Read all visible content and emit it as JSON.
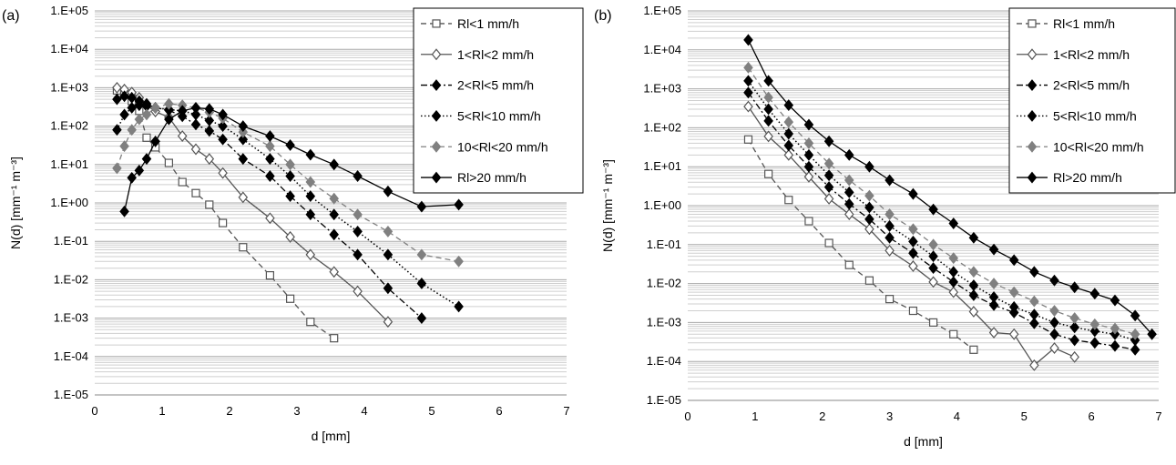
{
  "chart_data": [
    {
      "panel_label": "(a)",
      "type": "line",
      "xlabel": "d [mm]",
      "ylabel": "N(d) [mm⁻¹ m⁻³]",
      "xlim": [
        0,
        7
      ],
      "ylim": [
        1e-05,
        100000
      ],
      "y_scale": "log",
      "grid": true,
      "legend_position": "top-right",
      "x_ticks": [
        "0",
        "1",
        "2",
        "3",
        "4",
        "5",
        "6",
        "7"
      ],
      "y_ticks": [
        "1.E-05",
        "1.E-04",
        "1.E-03",
        "1.E-02",
        "1.E-01",
        "1.E+00",
        "1.E+01",
        "1.E+02",
        "1.E+03",
        "1.E+04",
        "1.E+05"
      ],
      "series": [
        {
          "name": "Rl<1 mm/h",
          "marker": "square-open",
          "dash": "dashed",
          "color": "#555555",
          "x": [
            0.33,
            0.44,
            0.55,
            0.66,
            0.77,
            0.9,
            1.1,
            1.3,
            1.5,
            1.7,
            1.9,
            2.2,
            2.6,
            2.9,
            3.2,
            3.55
          ],
          "y": [
            850,
            650,
            450,
            250,
            50,
            28,
            11,
            3.5,
            1.8,
            0.9,
            0.3,
            0.07,
            0.013,
            0.0032,
            0.0008,
            0.0003
          ]
        },
        {
          "name": "1<Rl<2 mm/h",
          "marker": "diamond-open",
          "dash": "solid",
          "color": "#555555",
          "x": [
            0.33,
            0.44,
            0.55,
            0.66,
            0.77,
            0.9,
            1.1,
            1.3,
            1.5,
            1.7,
            1.9,
            2.2,
            2.6,
            2.9,
            3.2,
            3.55,
            3.9,
            4.35
          ],
          "y": [
            1000,
            900,
            750,
            550,
            350,
            240,
            170,
            55,
            25,
            14,
            6,
            1.4,
            0.4,
            0.13,
            0.045,
            0.016,
            0.005,
            0.0008
          ]
        },
        {
          "name": "2<Rl<5 mm/h",
          "marker": "diamond",
          "dash": "dashdot",
          "color": "#000000",
          "x": [
            0.33,
            0.44,
            0.55,
            0.66,
            0.77,
            0.9,
            1.1,
            1.3,
            1.5,
            1.7,
            1.9,
            2.2,
            2.6,
            2.9,
            3.2,
            3.55,
            3.9,
            4.35,
            4.85
          ],
          "y": [
            500,
            600,
            550,
            450,
            380,
            300,
            260,
            180,
            110,
            75,
            45,
            14,
            5,
            1.5,
            0.5,
            0.15,
            0.045,
            0.006,
            0.001
          ]
        },
        {
          "name": "5<Rl<10 mm/h",
          "marker": "diamond",
          "dash": "dotted",
          "color": "#000000",
          "x": [
            0.33,
            0.44,
            0.55,
            0.66,
            0.77,
            0.9,
            1.1,
            1.3,
            1.5,
            1.7,
            1.9,
            2.2,
            2.6,
            2.9,
            3.2,
            3.55,
            3.9,
            4.35,
            4.85,
            5.4
          ],
          "y": [
            80,
            200,
            300,
            350,
            330,
            300,
            270,
            250,
            200,
            140,
            100,
            45,
            14,
            5,
            1.5,
            0.5,
            0.18,
            0.045,
            0.008,
            0.002
          ]
        },
        {
          "name": "10<Rl<20 mm/h",
          "marker": "diamond",
          "dash": "dashed",
          "color": "#808080",
          "x": [
            0.33,
            0.44,
            0.55,
            0.66,
            0.77,
            0.9,
            1.1,
            1.3,
            1.5,
            1.7,
            1.9,
            2.2,
            2.6,
            2.9,
            3.2,
            3.55,
            3.9,
            4.35,
            4.85,
            5.4
          ],
          "y": [
            8,
            30,
            80,
            150,
            200,
            300,
            380,
            350,
            300,
            230,
            160,
            70,
            30,
            10,
            3.5,
            1.3,
            0.5,
            0.18,
            0.045,
            0.03
          ]
        },
        {
          "name": "Rl>20 mm/h",
          "marker": "diamond",
          "dash": "solid",
          "color": "#000000",
          "x": [
            0.44,
            0.55,
            0.66,
            0.77,
            0.9,
            1.1,
            1.3,
            1.5,
            1.7,
            1.9,
            2.2,
            2.6,
            2.9,
            3.2,
            3.55,
            3.9,
            4.35,
            4.85,
            5.4
          ],
          "y": [
            0.6,
            4.5,
            7,
            14,
            40,
            150,
            250,
            300,
            280,
            200,
            100,
            55,
            32,
            18,
            10,
            5,
            2,
            0.8,
            0.9
          ]
        }
      ]
    },
    {
      "panel_label": "(b)",
      "type": "line",
      "xlabel": "d [mm]",
      "ylabel": "N(d) [mm⁻¹ m⁻³]",
      "xlim": [
        0,
        7
      ],
      "ylim": [
        1e-05,
        100000
      ],
      "y_scale": "log",
      "grid": true,
      "legend_position": "top-right",
      "x_ticks": [
        "0",
        "1",
        "2",
        "3",
        "4",
        "5",
        "6",
        "7"
      ],
      "y_ticks": [
        "1.E-05",
        "1.E-04",
        "1.E-03",
        "1.E-02",
        "1.E-01",
        "1.E+00",
        "1.E+01",
        "1.E+02",
        "1.E+03",
        "1.E+04",
        "1.E+05"
      ],
      "series": [
        {
          "name": "Rl<1 mm/h",
          "marker": "square-open",
          "dash": "dashed",
          "color": "#555555",
          "x": [
            0.9,
            1.2,
            1.5,
            1.8,
            2.1,
            2.4,
            2.7,
            3.0,
            3.35,
            3.65,
            3.95,
            4.25
          ],
          "y": [
            50,
            6.5,
            1.4,
            0.4,
            0.11,
            0.03,
            0.012,
            0.004,
            0.002,
            0.001,
            0.0005,
            0.0002
          ]
        },
        {
          "name": "1<Rl<2 mm/h",
          "marker": "diamond-open",
          "dash": "solid",
          "color": "#555555",
          "x": [
            0.9,
            1.2,
            1.5,
            1.8,
            2.1,
            2.4,
            2.7,
            3.0,
            3.35,
            3.65,
            3.95,
            4.25,
            4.55,
            4.85,
            5.15,
            5.45,
            5.75
          ],
          "y": [
            350,
            60,
            20,
            5.5,
            1.5,
            0.6,
            0.25,
            0.07,
            0.028,
            0.011,
            0.006,
            0.0019,
            0.00055,
            0.0005,
            8e-05,
            0.00022,
            0.00013
          ]
        },
        {
          "name": "2<Rl<5 mm/h",
          "marker": "diamond",
          "dash": "dashdot",
          "color": "#000000",
          "x": [
            0.9,
            1.2,
            1.5,
            1.8,
            2.1,
            2.4,
            2.7,
            3.0,
            3.35,
            3.65,
            3.95,
            4.25,
            4.55,
            4.85,
            5.15,
            5.45,
            5.75,
            6.05,
            6.35,
            6.65
          ],
          "y": [
            800,
            150,
            35,
            10,
            3,
            1.1,
            0.45,
            0.15,
            0.06,
            0.025,
            0.011,
            0.005,
            0.0028,
            0.0018,
            0.00095,
            0.0005,
            0.00035,
            0.0003,
            0.00025,
            0.0002
          ]
        },
        {
          "name": "5<Rl<10 mm/h",
          "marker": "diamond",
          "dash": "dotted",
          "color": "#000000",
          "x": [
            0.9,
            1.2,
            1.5,
            1.8,
            2.1,
            2.4,
            2.7,
            3.0,
            3.35,
            3.65,
            3.95,
            4.25,
            4.55,
            4.85,
            5.15,
            5.45,
            5.75,
            6.05,
            6.35,
            6.65
          ],
          "y": [
            1600,
            300,
            70,
            20,
            6,
            2.2,
            0.9,
            0.3,
            0.12,
            0.05,
            0.02,
            0.009,
            0.0045,
            0.0025,
            0.0016,
            0.001,
            0.00075,
            0.0006,
            0.0005,
            0.00035
          ]
        },
        {
          "name": "10<Rl<20 mm/h",
          "marker": "diamond",
          "dash": "dashed",
          "color": "#808080",
          "x": [
            0.9,
            1.2,
            1.5,
            1.8,
            2.1,
            2.4,
            2.7,
            3.0,
            3.35,
            3.65,
            3.95,
            4.25,
            4.55,
            4.85,
            5.15,
            5.45,
            5.75,
            6.05,
            6.35,
            6.65
          ],
          "y": [
            3500,
            600,
            140,
            40,
            12,
            4.5,
            1.8,
            0.6,
            0.25,
            0.1,
            0.045,
            0.02,
            0.01,
            0.006,
            0.0035,
            0.002,
            0.0013,
            0.0009,
            0.0007,
            0.0005
          ]
        },
        {
          "name": "Rl>20 mm/h",
          "marker": "diamond",
          "dash": "solid",
          "color": "#000000",
          "x": [
            0.9,
            1.2,
            1.5,
            1.8,
            2.1,
            2.4,
            2.7,
            3.0,
            3.35,
            3.65,
            3.95,
            4.25,
            4.55,
            4.85,
            5.15,
            5.45,
            5.75,
            6.05,
            6.35,
            6.65,
            6.9
          ],
          "y": [
            18000,
            1600,
            380,
            120,
            45,
            20,
            10,
            4.5,
            2,
            0.8,
            0.35,
            0.15,
            0.075,
            0.04,
            0.02,
            0.012,
            0.008,
            0.0055,
            0.0037,
            0.0015,
            0.0005
          ]
        }
      ]
    }
  ]
}
